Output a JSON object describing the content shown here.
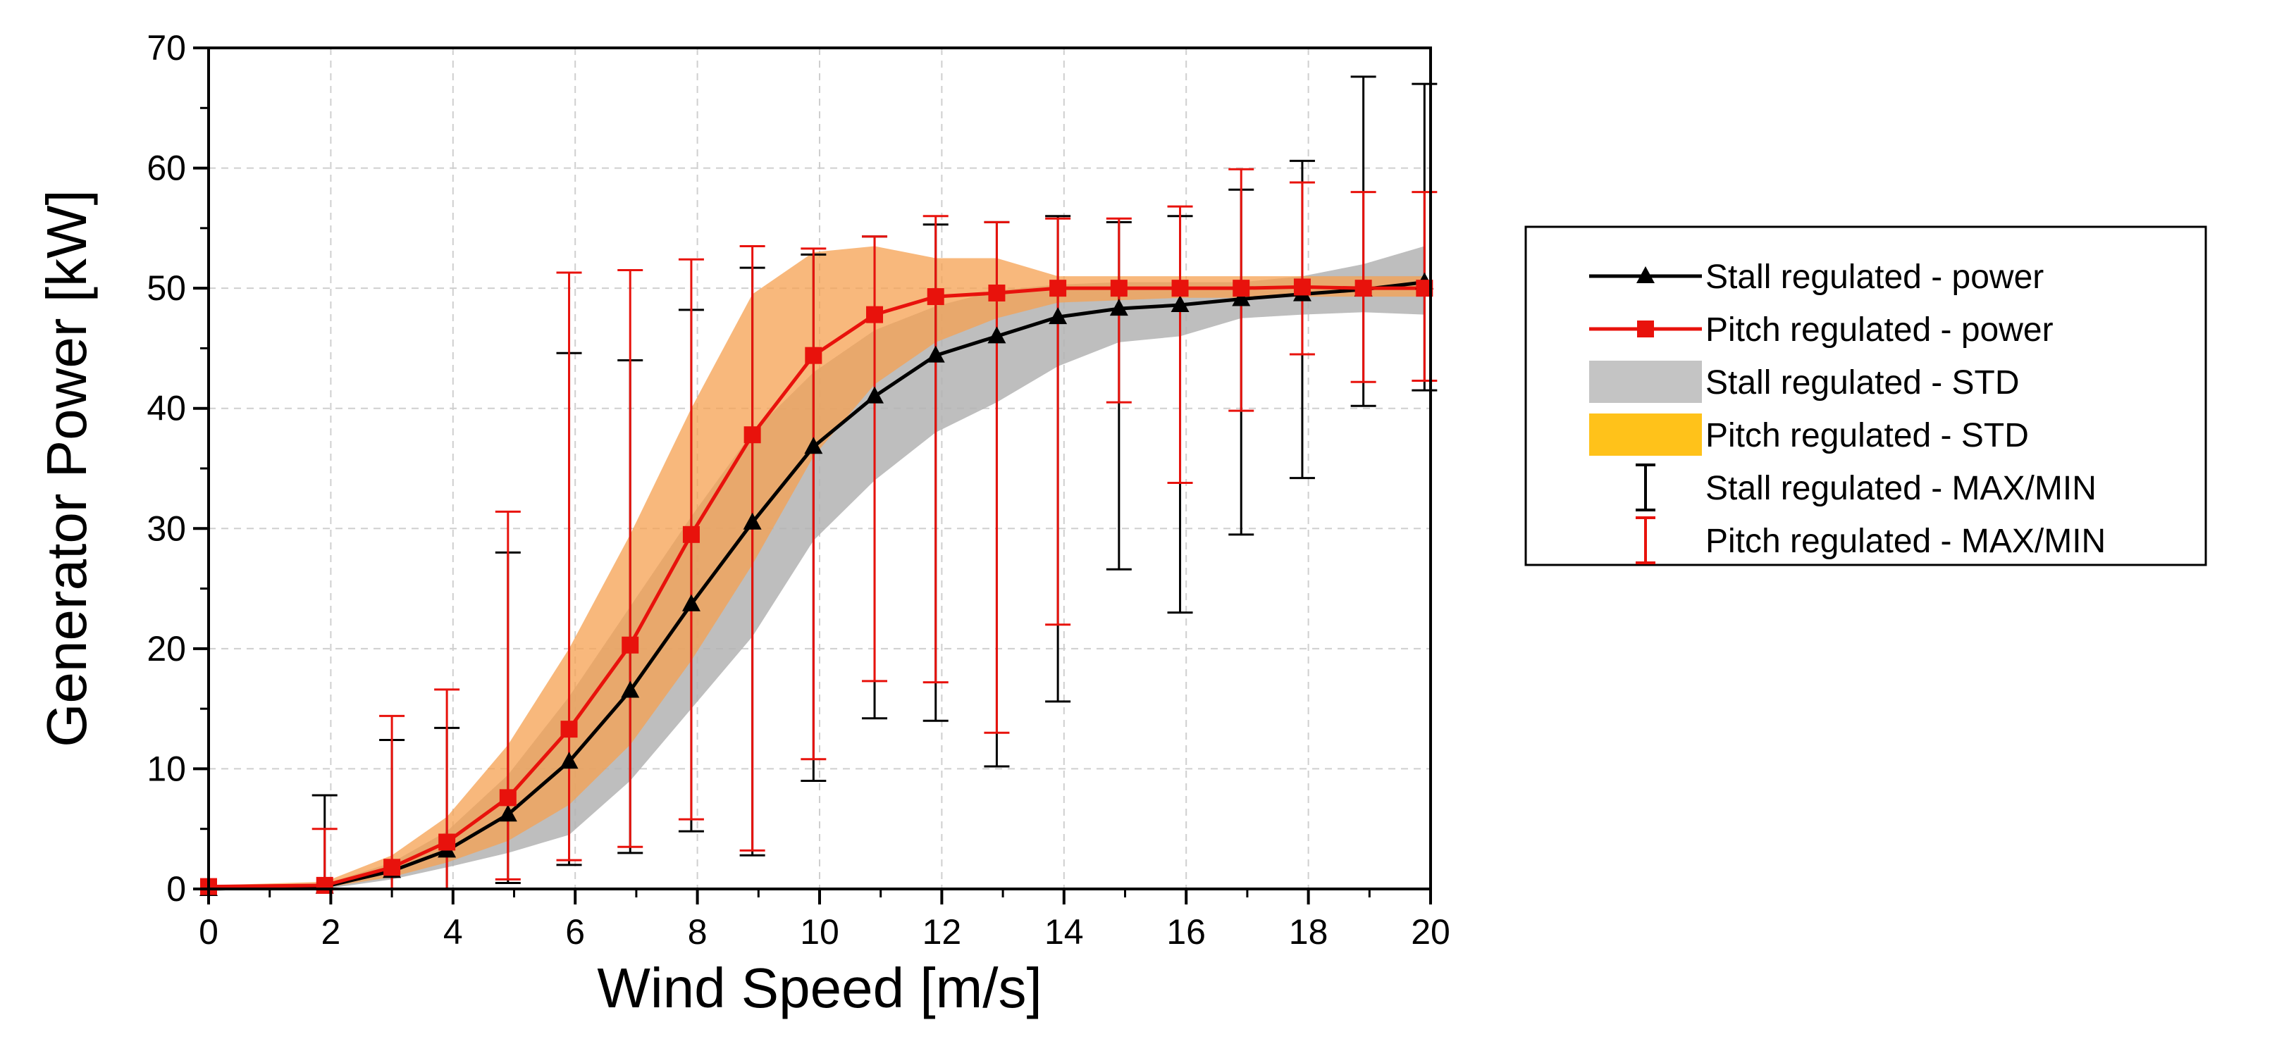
{
  "chart_data": {
    "type": "line",
    "xlabel": "Wind Speed [m/s]",
    "ylabel": "Generator Power [kW]",
    "xlim": [
      0,
      20
    ],
    "ylim": [
      0,
      70
    ],
    "x_ticks": [
      0,
      2,
      4,
      6,
      8,
      10,
      12,
      14,
      16,
      18,
      20
    ],
    "y_ticks": [
      0,
      10,
      20,
      30,
      40,
      50,
      60,
      70
    ],
    "grid": true,
    "legend_position": "right",
    "x": [
      0,
      1.9,
      3,
      3.9,
      4.9,
      5.9,
      6.9,
      7.9,
      8.9,
      9.9,
      10.9,
      11.9,
      12.9,
      13.9,
      14.9,
      15.9,
      16.9,
      17.9,
      18.9,
      19.9
    ],
    "series": [
      {
        "name": "Stall regulated - power",
        "color": "#000000",
        "marker": "triangle",
        "values": [
          0,
          0.2,
          1.5,
          3.2,
          6.2,
          10.6,
          16.5,
          23.7,
          30.5,
          36.8,
          41.0,
          44.4,
          46.0,
          47.6,
          48.3,
          48.6,
          49.1,
          49.5,
          49.9,
          50.5
        ]
      },
      {
        "name": "Pitch regulated - power",
        "color": "#e8120c",
        "marker": "square",
        "values": [
          0.2,
          0.3,
          1.8,
          3.9,
          7.6,
          13.3,
          20.3,
          29.5,
          37.8,
          44.4,
          47.8,
          49.3,
          49.6,
          50.0,
          50.0,
          50.0,
          50.0,
          50.1,
          50.0,
          50.0
        ]
      }
    ],
    "std_bands": [
      {
        "name": "Stall regulated - STD",
        "color": "#b3b3b3",
        "lower": [
          0,
          0,
          0.8,
          1.8,
          3.0,
          4.5,
          9.0,
          15.0,
          21.0,
          29.0,
          34.0,
          38.0,
          40.5,
          43.5,
          45.5,
          46.0,
          47.5,
          47.8,
          48.0,
          47.8
        ],
        "upper": [
          0,
          0.4,
          2.2,
          4.8,
          9.5,
          16.0,
          23.5,
          31.0,
          38.0,
          43.0,
          46.5,
          48.5,
          49.8,
          50.3,
          50.5,
          50.5,
          50.5,
          51.0,
          52.0,
          53.5
        ]
      },
      {
        "name": "Pitch regulated - STD",
        "color": "#f5a050",
        "lower": [
          0,
          0.1,
          1.0,
          2.2,
          4.0,
          7.0,
          12.0,
          19.0,
          27.0,
          36.0,
          42.0,
          45.5,
          47.5,
          48.8,
          49.0,
          49.2,
          49.2,
          49.3,
          49.3,
          49.3
        ],
        "upper": [
          0.3,
          0.6,
          2.8,
          6.0,
          12.0,
          20.0,
          29.5,
          40.0,
          49.5,
          53.0,
          53.5,
          52.5,
          52.5,
          51.0,
          51.0,
          51.0,
          51.0,
          51.0,
          51.0,
          51.0
        ]
      }
    ],
    "error_bars": [
      {
        "name": "Stall regulated - MAX/MIN",
        "color": "#000000",
        "x": [
          1.9,
          3,
          3.9,
          4.9,
          5.9,
          6.9,
          7.9,
          8.9,
          9.9,
          10.9,
          11.9,
          12.9,
          13.9,
          14.9,
          15.9,
          16.9,
          17.9,
          18.9,
          19.9
        ],
        "max": [
          7.8,
          12.4,
          13.4,
          28.0,
          44.6,
          44.0,
          48.2,
          51.7,
          52.8,
          54.3,
          55.3,
          55.5,
          56.0,
          55.5,
          56.0,
          58.2,
          60.6,
          67.6,
          67.0
        ],
        "min": [
          0.0,
          0.0,
          0.0,
          0.5,
          2.0,
          3.0,
          4.8,
          2.8,
          9.0,
          14.2,
          14.0,
          10.2,
          15.6,
          26.6,
          23.0,
          29.5,
          34.2,
          40.2,
          41.5
        ]
      },
      {
        "name": "Pitch regulated - MAX/MIN",
        "color": "#e8120c",
        "x": [
          1.9,
          3,
          3.9,
          4.9,
          5.9,
          6.9,
          7.9,
          8.9,
          9.9,
          10.9,
          11.9,
          12.9,
          13.9,
          14.9,
          15.9,
          16.9,
          17.9,
          18.9,
          19.9
        ],
        "max": [
          5.0,
          14.4,
          16.6,
          31.4,
          51.3,
          51.5,
          52.4,
          53.5,
          53.3,
          54.3,
          56.0,
          55.5,
          55.8,
          55.8,
          56.8,
          59.9,
          58.8,
          58.0,
          58.0
        ],
        "min": [
          0.0,
          0.0,
          0.0,
          0.8,
          2.4,
          3.5,
          5.8,
          3.2,
          10.8,
          17.3,
          17.2,
          13.0,
          22.0,
          40.5,
          33.8,
          39.8,
          44.5,
          42.2,
          42.3
        ]
      }
    ],
    "legend": [
      {
        "label": "Stall regulated - power",
        "kind": "line-triangle",
        "color": "#000000"
      },
      {
        "label": "Pitch regulated - power",
        "kind": "line-square",
        "color": "#e8120c"
      },
      {
        "label": "Stall regulated - STD",
        "kind": "fill",
        "color": "#c4c4c4"
      },
      {
        "label": "Pitch regulated - STD",
        "kind": "fill",
        "color": "#ffc21a"
      },
      {
        "label": "Stall regulated - MAX/MIN",
        "kind": "errorbar",
        "color": "#000000"
      },
      {
        "label": "Pitch regulated - MAX/MIN",
        "kind": "errorbar",
        "color": "#e8120c"
      }
    ]
  }
}
